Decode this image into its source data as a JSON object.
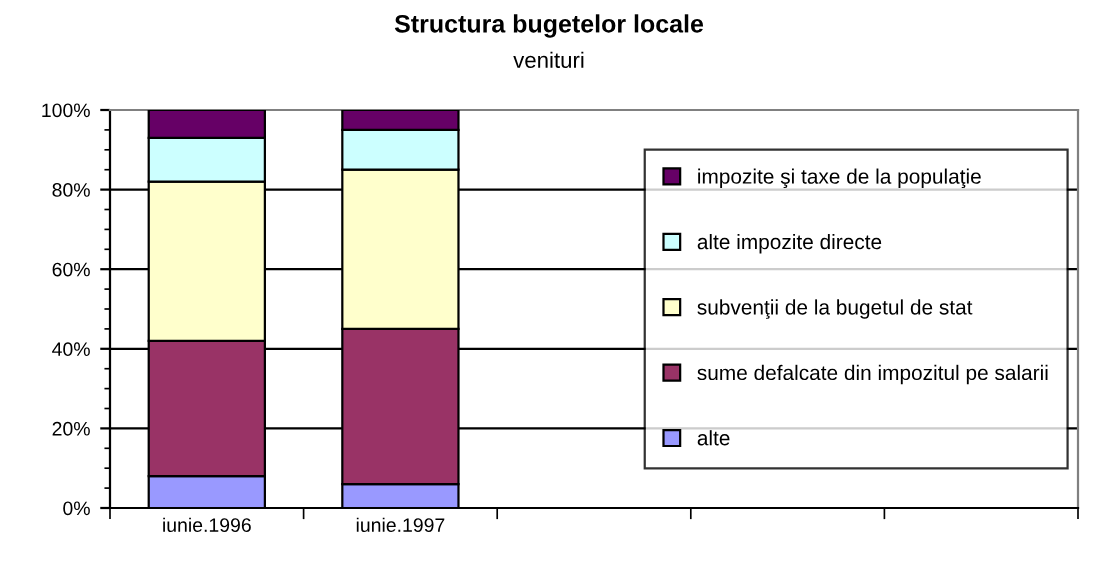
{
  "chart_data": {
    "type": "bar",
    "title": "Structura bugetelor locale",
    "subtitle": "venituri",
    "stacked": true,
    "categories": [
      "iunie.1996",
      "iunie.1997",
      null,
      null,
      null
    ],
    "series": [
      {
        "name": "alte",
        "color": "#9999ff",
        "values": [
          8,
          6,
          null,
          null,
          null
        ]
      },
      {
        "name": "sume defalcate din impozitul pe salarii",
        "color": "#993366",
        "values": [
          34,
          39,
          null,
          null,
          null
        ]
      },
      {
        "name": "subvenţii de la bugetul de stat",
        "color": "#ffffcc",
        "values": [
          40,
          40,
          null,
          null,
          null
        ]
      },
      {
        "name": "alte impozite directe",
        "color": "#ccffff",
        "values": [
          11,
          10,
          null,
          null,
          null
        ]
      },
      {
        "name": "impozite şi taxe de la populaţie",
        "color": "#660066",
        "values": [
          7,
          5,
          null,
          null,
          null
        ]
      }
    ],
    "ylim": [
      0,
      100
    ],
    "yticks": [
      {
        "value": 0,
        "label": "0%"
      },
      {
        "value": 20,
        "label": "20%"
      },
      {
        "value": 40,
        "label": "40%"
      },
      {
        "value": 60,
        "label": "60%"
      },
      {
        "value": 80,
        "label": "80%"
      },
      {
        "value": 100,
        "label": "100%"
      }
    ],
    "grid": "y",
    "legend": "right"
  }
}
